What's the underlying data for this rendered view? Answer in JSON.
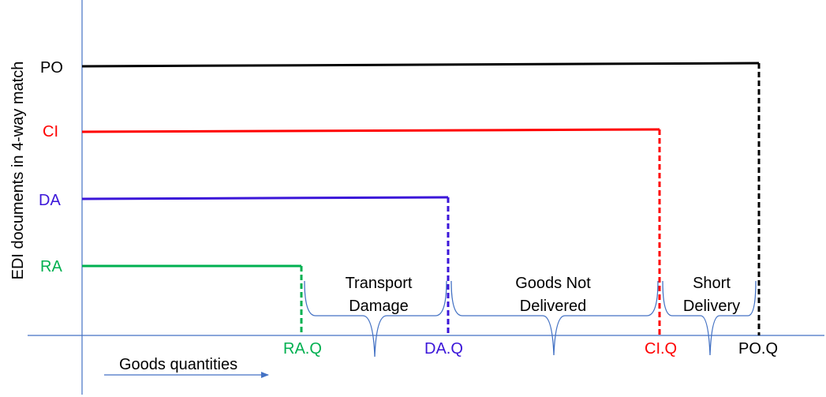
{
  "y_axis_label": "EDI documents in 4-way match",
  "x_axis_label": "Goods quantities",
  "colors": {
    "axis": "#4472C4",
    "brace": "#4472C4",
    "po": "#000000",
    "ci": "#FF0000",
    "da": "#3B16D9",
    "ra": "#00B050",
    "text": "#000000"
  },
  "documents": [
    {
      "key": "po",
      "label": "PO",
      "qty_label": "PO.Q",
      "qty_rank": 4
    },
    {
      "key": "ci",
      "label": "CI",
      "qty_label": "CI.Q",
      "qty_rank": 3
    },
    {
      "key": "da",
      "label": "DA",
      "qty_label": "DA.Q",
      "qty_rank": 2
    },
    {
      "key": "ra",
      "label": "RA",
      "qty_label": "RA.Q",
      "qty_rank": 1
    }
  ],
  "gaps": [
    {
      "key": "transport-damage",
      "lines": [
        "Transport",
        "Damage"
      ],
      "from": "ra",
      "to": "da"
    },
    {
      "key": "goods-not-delivered",
      "lines": [
        "Goods Not",
        "Delivered"
      ],
      "from": "da",
      "to": "ci"
    },
    {
      "key": "short-delivery",
      "lines": [
        "Short",
        "Delivery"
      ],
      "from": "ci",
      "to": "po"
    }
  ]
}
